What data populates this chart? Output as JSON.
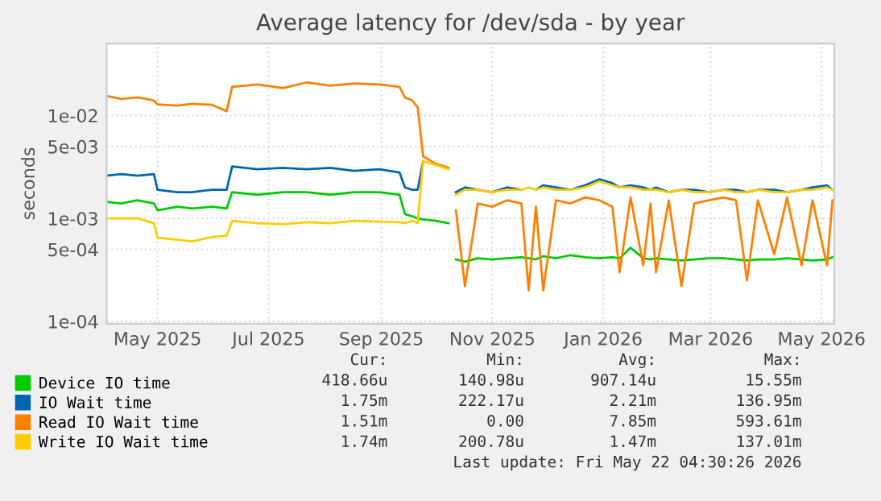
{
  "chart_data": {
    "type": "line",
    "title": "Average latency for /dev/sda - by year",
    "ylabel": "seconds",
    "x": [
      "2025-04-17",
      "2025-04-25",
      "2025-05-04",
      "2025-05-13",
      "2025-05-15",
      "2025-05-26",
      "2025-06-03",
      "2025-06-14",
      "2025-06-22",
      "2025-06-25",
      "2025-07-09",
      "2025-07-23",
      "2025-08-05",
      "2025-08-18",
      "2025-08-31",
      "2025-09-14",
      "2025-09-25",
      "2025-09-28",
      "2025-10-02",
      "2025-10-05",
      "2025-10-08",
      "2025-10-15",
      "2025-10-22",
      "2025-10-24",
      "2025-10-26",
      "2025-10-31",
      "2025-11-07",
      "2025-11-15",
      "2025-11-23",
      "2025-12-01",
      "2025-12-05",
      "2025-12-09",
      "2025-12-13",
      "2025-12-20",
      "2025-12-28",
      "2026-01-05",
      "2026-01-13",
      "2026-01-20",
      "2026-01-24",
      "2026-01-30",
      "2026-02-06",
      "2026-02-10",
      "2026-02-13",
      "2026-02-20",
      "2026-02-27",
      "2026-03-06",
      "2026-03-14",
      "2026-03-22",
      "2026-03-29",
      "2026-04-04",
      "2026-04-10",
      "2026-04-19",
      "2026-04-26",
      "2026-05-04",
      "2026-05-10",
      "2026-05-18",
      "2026-05-21"
    ],
    "series": [
      {
        "name": "Device IO time",
        "color": "#00cc00",
        "values": [
          0.00145,
          0.0014,
          0.0015,
          0.0014,
          0.0012,
          0.0013,
          0.00125,
          0.0013,
          0.00125,
          0.0018,
          0.0017,
          0.0018,
          0.0018,
          0.0017,
          0.0018,
          0.0018,
          0.0017,
          0.0011,
          0.00105,
          0.001,
          0.00098,
          0.00095,
          0.0009,
          null,
          0.0004,
          0.00038,
          0.00041,
          0.0004,
          0.00041,
          0.00042,
          0.00041,
          0.0004,
          0.00043,
          0.00041,
          0.00044,
          0.00042,
          0.00041,
          0.00042,
          0.00041,
          0.00052,
          0.00041,
          0.0004,
          0.00041,
          0.0004,
          0.00039,
          0.0004,
          0.00041,
          0.00041,
          0.0004,
          0.00039,
          0.0004,
          0.0004,
          0.00041,
          0.0004,
          0.00039,
          0.0004,
          0.00042
        ]
      },
      {
        "name": "IO Wait time",
        "color": "#0066b3",
        "values": [
          0.0026,
          0.0027,
          0.0026,
          0.0027,
          0.0019,
          0.0018,
          0.0018,
          0.0019,
          0.0019,
          0.0032,
          0.003,
          0.0031,
          0.003,
          0.0031,
          0.0029,
          0.003,
          0.0028,
          0.002,
          0.0019,
          0.0019,
          0.0036,
          null,
          null,
          null,
          0.0018,
          0.002,
          0.0019,
          0.0018,
          0.002,
          0.0019,
          null,
          0.0019,
          0.0021,
          0.002,
          0.0019,
          0.0021,
          0.0024,
          0.0022,
          0.002,
          0.0021,
          0.002,
          0.0019,
          0.002,
          0.0018,
          0.0019,
          0.0019,
          0.0018,
          0.0019,
          0.0019,
          0.0018,
          0.0019,
          0.0019,
          0.0018,
          0.0019,
          0.002,
          0.0021,
          0.0019
        ]
      },
      {
        "name": "Read IO Wait time",
        "color": "#ff8000",
        "values": [
          0.0155,
          0.0145,
          0.015,
          0.014,
          0.0128,
          0.0125,
          0.013,
          0.0127,
          0.011,
          0.019,
          0.02,
          0.0185,
          0.021,
          0.0195,
          0.0205,
          0.02,
          0.019,
          0.015,
          0.014,
          0.012,
          0.004,
          0.0034,
          0.0031,
          null,
          0.0012,
          0.00022,
          0.0014,
          0.0013,
          0.0015,
          0.0014,
          0.0002,
          0.0013,
          0.0002,
          0.0015,
          0.0014,
          0.0016,
          0.0015,
          0.0013,
          0.0003,
          0.0016,
          0.00035,
          0.0014,
          0.0003,
          0.0015,
          0.00022,
          0.0014,
          0.0015,
          0.0016,
          0.0015,
          0.00025,
          0.0015,
          0.00045,
          0.0016,
          0.00035,
          0.0015,
          0.00035,
          0.0015
        ]
      },
      {
        "name": "Write IO Wait time",
        "color": "#ffcc00",
        "values": [
          0.001,
          0.001,
          0.001,
          0.0009,
          0.00065,
          0.00062,
          0.0006,
          0.00066,
          0.00068,
          0.00095,
          0.0009,
          0.00088,
          0.00092,
          0.0009,
          0.00095,
          0.00093,
          0.00092,
          0.0009,
          0.00095,
          0.0009,
          0.0036,
          0.0033,
          0.003,
          null,
          0.0017,
          0.0019,
          0.0019,
          0.0018,
          0.0019,
          0.0019,
          0.002,
          0.0019,
          0.002,
          0.0019,
          0.0019,
          0.002,
          0.0023,
          0.0021,
          0.002,
          0.002,
          0.0019,
          0.0019,
          0.0019,
          0.0018,
          0.0019,
          0.0018,
          0.0018,
          0.0019,
          0.0018,
          0.0018,
          0.0019,
          0.0018,
          0.0018,
          0.0019,
          0.0019,
          0.002,
          0.0019
        ]
      }
    ],
    "log": "y",
    "ylim": [
      9.5e-05,
      0.05
    ],
    "yticks": [
      {
        "value": 0.0001,
        "label": "1e-04"
      },
      {
        "value": 0.0005,
        "label": "5e-04"
      },
      {
        "value": 0.001,
        "label": "1e-03"
      },
      {
        "value": 0.005,
        "label": "5e-03"
      },
      {
        "value": 0.01,
        "label": "1e-02"
      }
    ],
    "xlim": [
      "2025-04-17",
      "2026-05-22"
    ],
    "xticks": [
      {
        "value": "2025-05-15",
        "label": "May 2025"
      },
      {
        "value": "2025-07-15",
        "label": "Jul 2025"
      },
      {
        "value": "2025-09-15",
        "label": "Sep 2025"
      },
      {
        "value": "2025-11-15",
        "label": "Nov 2025"
      },
      {
        "value": "2026-01-15",
        "label": "Jan 2026"
      },
      {
        "value": "2026-03-15",
        "label": "Mar 2026"
      },
      {
        "value": "2026-05-15",
        "label": "May 2026"
      }
    ],
    "grid": true,
    "legend": "bottom left",
    "marker": "none",
    "line_style": "solid",
    "annotations": [
      "Cur:",
      "Min:",
      "Avg:",
      "Max:",
      "418.66u",
      "140.98u",
      "907.14u",
      "15.55m",
      "1.75m",
      "222.17u",
      "2.21m",
      "136.95m",
      "1.51m",
      "0.00",
      "7.85m",
      "593.61m",
      "1.74m",
      "200.78u",
      "1.47m",
      "137.01m",
      "Last update: Fri May 22 04:30:26 2026"
    ]
  }
}
